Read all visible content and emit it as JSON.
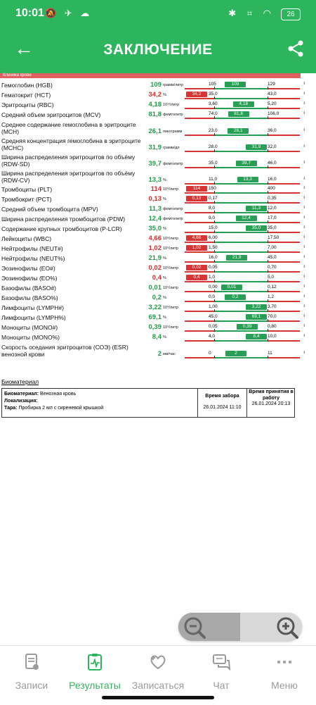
{
  "status": {
    "time": "10:01",
    "battery": "26"
  },
  "header": {
    "title": "ЗАКЛЮЧЕНИЕ"
  },
  "report": {
    "clinic_label": "Клиника крови",
    "rows": [
      {
        "label": "Гемоглобин (HGB)",
        "value": "109",
        "unit": "грамм/литр",
        "status": "normal",
        "low": "105",
        "high": "129"
      },
      {
        "label": "Гематокрит (HCT)",
        "value": "34,2",
        "unit": "%",
        "status": "low",
        "low": "35,0",
        "high": "43,0"
      },
      {
        "label": "Эритроциты (RBC)",
        "value": "4,18",
        "unit": "10¹²/литр",
        "status": "normal",
        "low": "3,60",
        "high": "5,20"
      },
      {
        "label": "Средний объем эритроцитов (MCV)",
        "value": "81,8",
        "unit": "фемтолитр",
        "status": "normal",
        "low": "74,0",
        "high": "106,0"
      },
      {
        "label": "Среднее содержание гемоглобина в эритроците (MCH)",
        "value": "26,1",
        "unit": "пикограмм",
        "status": "normal",
        "low": "23,0",
        "high": "36,0"
      },
      {
        "label": "Средняя концентрация гемоглобина в эритроците (MCHC)",
        "value": "31,9",
        "unit": "грамм/дл",
        "status": "normal",
        "low": "28,0",
        "high": "32,0"
      },
      {
        "label": "Ширина распределения эритроцитов по объёму (RDW-SD)",
        "value": "39,7",
        "unit": "фемтолитр",
        "status": "normal",
        "low": "35,0",
        "high": "46,0"
      },
      {
        "label": "Ширина распределения эритроцитов по объёму (RDW-CV)",
        "value": "13,3",
        "unit": "%",
        "status": "normal",
        "low": "11,0",
        "high": "16,0"
      },
      {
        "label": "Тромбоциты (PLT)",
        "value": "114",
        "unit": "10⁹/литр",
        "status": "low",
        "low": "150",
        "high": "400"
      },
      {
        "label": "Тромбокрит (PCT)",
        "value": "0,13",
        "unit": "%",
        "status": "low",
        "low": "0,17",
        "high": "0,35"
      },
      {
        "label": "Средний объем тромбоцита (MPV)",
        "value": "11,3",
        "unit": "фемтолитр",
        "status": "normal",
        "low": "8,0",
        "high": "12,0"
      },
      {
        "label": "Ширина распределения тромбоцитов (PDW)",
        "value": "12,4",
        "unit": "фемтолитр",
        "status": "normal",
        "low": "9,0",
        "high": "17,0"
      },
      {
        "label": "Содержание крупных тромбоцитов (P-LCR)",
        "value": "35,0",
        "unit": "%",
        "status": "normal",
        "low": "15,0",
        "high": "35,0"
      },
      {
        "label": "Лейкоциты (WBC)",
        "value": "4,66",
        "unit": "10⁹/литр",
        "status": "low",
        "low": "6,00",
        "high": "17,50"
      },
      {
        "label": "Нейтрофилы (NEUT#)",
        "value": "1,02",
        "unit": "10⁹/литр",
        "status": "low",
        "low": "1,50",
        "high": "7,00"
      },
      {
        "label": "Нейтрофилы (NEUT%)",
        "value": "21,9",
        "unit": "%",
        "status": "normal",
        "low": "16,0",
        "high": "45,0"
      },
      {
        "label": "Эозинофилы (EO#)",
        "value": "0,02",
        "unit": "10⁹/литр",
        "status": "low",
        "low": "0,05",
        "high": "0,70"
      },
      {
        "label": "Эозинофилы (EO%)",
        "value": "0,4",
        "unit": "%",
        "status": "low",
        "low": "1,0",
        "high": "5,0"
      },
      {
        "label": "Базофилы (BASO#)",
        "value": "0,01",
        "unit": "10⁹/литр",
        "status": "normal",
        "low": "0,00",
        "high": "0,12"
      },
      {
        "label": "Базофилы (BASO%)",
        "value": "0,2",
        "unit": "%",
        "status": "normal",
        "low": "0,0",
        "high": "1,2"
      },
      {
        "label": "Лимфоциты (LYMPH#)",
        "value": "3,22",
        "unit": "10⁹/литр",
        "status": "normal",
        "low": "1,00",
        "high": "3,70"
      },
      {
        "label": "Лимфоциты (LYMPH%)",
        "value": "69,1",
        "unit": "%",
        "status": "normal",
        "low": "45,0",
        "high": "70,0"
      },
      {
        "label": "Моноциты (MONO#)",
        "value": "0,39",
        "unit": "10⁹/литр",
        "status": "normal",
        "low": "0,05",
        "high": "0,80"
      },
      {
        "label": "Моноциты (MONO%)",
        "value": "8,4",
        "unit": "%",
        "status": "normal",
        "low": "4,0",
        "high": "10,0"
      },
      {
        "label": "Скорость оседания эритроцитов (СОЭ) (ESR) венозной крови",
        "value": "2",
        "unit": "мм/час",
        "status": "normal",
        "low": "0",
        "high": "11"
      }
    ],
    "biomaterial": {
      "heading": "Биоматериал",
      "material_label": "Биоматериал:",
      "material_value": "Венозная кровь",
      "localization_label": "Локализация:",
      "localization_value": "",
      "container_label": "Тара:",
      "container_value": "Пробирка 2 мл с сиреневой крышкой",
      "collected_header": "Время забора",
      "collected_value": "26.01.2024 11:10",
      "accepted_header": "Время принятия в работу",
      "accepted_value": "26.01.2024 20:13"
    }
  },
  "nav": {
    "items": [
      {
        "label": "Записи",
        "icon": "document-icon"
      },
      {
        "label": "Результаты",
        "icon": "results-icon"
      },
      {
        "label": "Записаться",
        "icon": "heart-plus-icon"
      },
      {
        "label": "Чат",
        "icon": "chat-icon"
      },
      {
        "label": "Меню",
        "icon": "more-icon"
      }
    ],
    "active": "Результаты"
  },
  "colors": {
    "brand": "#2db55d",
    "normal": "#27a055",
    "abnormal": "#d73535"
  }
}
